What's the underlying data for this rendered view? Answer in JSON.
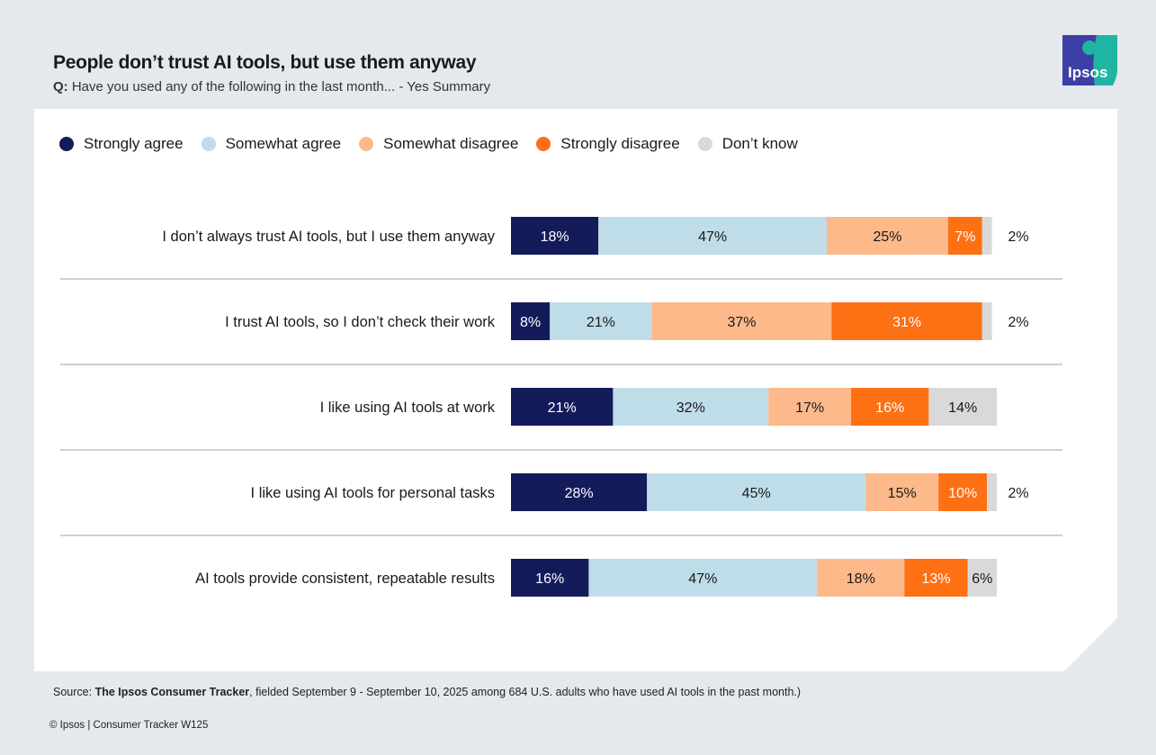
{
  "header": {
    "title": "People don’t trust AI tools, but use them anyway",
    "q_label": "Q:",
    "question": "Have you used any of the following in the last month... - Yes Summary"
  },
  "logo": {
    "text": "Ipsos",
    "colors": [
      "#3b3fa6",
      "#1fb5a3"
    ]
  },
  "chart_data": {
    "type": "bar",
    "orientation": "horizontal-stacked",
    "legend_position": "top-left",
    "categories": [
      "I don’t always trust AI tools, but I use them anyway",
      "I trust AI tools, so I don’t check their work",
      "I like using AI tools at work",
      "I like using AI tools for personal tasks",
      "AI tools provide consistent, repeatable results"
    ],
    "series": [
      {
        "name": "Strongly agree",
        "color": "#141b5b",
        "values": [
          18,
          8,
          21,
          28,
          16
        ]
      },
      {
        "name": "Somewhat agree",
        "color": "#bfdde9",
        "values": [
          47,
          21,
          32,
          45,
          47
        ]
      },
      {
        "name": "Somewhat disagree",
        "color": "#fdb98a",
        "values": [
          25,
          37,
          17,
          15,
          18
        ]
      },
      {
        "name": "Strongly disagree",
        "color": "#fd7014",
        "values": [
          7,
          31,
          16,
          10,
          13
        ]
      },
      {
        "name": "Don’t know",
        "color": "#d9d9d9",
        "values": [
          2,
          2,
          14,
          2,
          6
        ]
      }
    ],
    "unit": "%"
  },
  "footer": {
    "source_prefix": "Source: ",
    "source_bold": "The Ipsos Consumer Tracker",
    "source_rest": ", fielded September 9 - September 10, 2025 among 684 U.S. adults who have used AI tools in the past month.)",
    "copyright": "© Ipsos | Consumer Tracker W125"
  }
}
